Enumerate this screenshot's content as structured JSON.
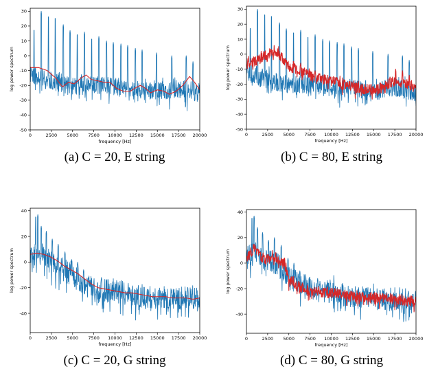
{
  "chart_data": [
    {
      "type": "line",
      "caption": "(a) C = 20, E string",
      "xlabel": "frequency [Hz]",
      "ylabel": "log power spectrum",
      "xlim": [
        0,
        20000
      ],
      "ylim": [
        -50,
        32
      ],
      "xticks": [
        0,
        2500,
        5000,
        7500,
        10000,
        12500,
        15000,
        17500,
        20000
      ],
      "yticks": [
        -50,
        -40,
        -30,
        -20,
        -10,
        0,
        10,
        20,
        30
      ],
      "series": [
        {
          "role": "spectrum",
          "color": "#1f77b4",
          "seed": 11,
          "base": [
            [
              0,
              -12
            ],
            [
              2500,
              -17
            ],
            [
              5000,
              -20
            ],
            [
              7500,
              -20
            ],
            [
              10000,
              -21
            ],
            [
              12500,
              -23
            ],
            [
              15000,
              -24
            ],
            [
              17500,
              -22
            ],
            [
              20000,
              -25
            ]
          ],
          "noise": 9,
          "amp": 3,
          "peaks": [
            [
              450,
              18
            ],
            [
              1300,
              30
            ],
            [
              2150,
              27
            ],
            [
              2950,
              26
            ],
            [
              3900,
              21
            ],
            [
              4700,
              17
            ],
            [
              5550,
              15
            ],
            [
              6400,
              16
            ],
            [
              7250,
              12
            ],
            [
              8100,
              13
            ],
            [
              9000,
              10
            ],
            [
              9800,
              9
            ],
            [
              10700,
              8
            ],
            [
              11500,
              7
            ],
            [
              12400,
              5
            ],
            [
              13200,
              4
            ],
            [
              14900,
              2
            ],
            [
              16700,
              0
            ],
            [
              18400,
              0
            ],
            [
              19200,
              -4
            ]
          ]
        },
        {
          "role": "envelope",
          "color": "#d62728",
          "points": [
            [
              0,
              -8
            ],
            [
              1000,
              -8
            ],
            [
              2000,
              -10
            ],
            [
              3000,
              -15
            ],
            [
              3800,
              -21
            ],
            [
              4500,
              -18
            ],
            [
              5200,
              -19
            ],
            [
              6000,
              -15
            ],
            [
              6600,
              -13
            ],
            [
              7200,
              -16
            ],
            [
              8000,
              -17
            ],
            [
              8800,
              -18
            ],
            [
              9400,
              -18
            ],
            [
              10200,
              -22
            ],
            [
              11000,
              -24
            ],
            [
              11800,
              -24
            ],
            [
              12300,
              -22
            ],
            [
              13000,
              -20
            ],
            [
              13600,
              -22
            ],
            [
              14200,
              -25
            ],
            [
              15000,
              -23
            ],
            [
              15800,
              -24
            ],
            [
              16400,
              -26
            ],
            [
              17200,
              -24
            ],
            [
              18000,
              -20
            ],
            [
              18800,
              -14
            ],
            [
              19400,
              -18
            ],
            [
              20000,
              -23
            ]
          ]
        }
      ]
    },
    {
      "type": "line",
      "caption": "(b) C = 80, E string",
      "xlabel": "frequency [Hz]",
      "ylabel": "log power spectrum",
      "xlim": [
        0,
        20000
      ],
      "ylim": [
        -50,
        32
      ],
      "xticks": [
        0,
        2500,
        5000,
        7500,
        10000,
        12500,
        15000,
        17500,
        20000
      ],
      "yticks": [
        -50,
        -40,
        -30,
        -20,
        -10,
        0,
        10,
        20,
        30
      ],
      "series": [
        {
          "role": "spectrum",
          "color": "#1f77b4",
          "seed": 23,
          "base": [
            [
              0,
              -12
            ],
            [
              2500,
              -17
            ],
            [
              5000,
              -20
            ],
            [
              7500,
              -20
            ],
            [
              10000,
              -22
            ],
            [
              12500,
              -23
            ],
            [
              15000,
              -24
            ],
            [
              17500,
              -22
            ],
            [
              20000,
              -25
            ]
          ],
          "noise": 9,
          "amp": 3,
          "peaks": [
            [
              450,
              18
            ],
            [
              1300,
              30
            ],
            [
              2150,
              27
            ],
            [
              2950,
              26
            ],
            [
              3900,
              21
            ],
            [
              4700,
              17
            ],
            [
              5550,
              15
            ],
            [
              6400,
              16
            ],
            [
              7250,
              12
            ],
            [
              8100,
              13
            ],
            [
              9000,
              10
            ],
            [
              9800,
              9
            ],
            [
              10700,
              8
            ],
            [
              11500,
              7
            ],
            [
              12400,
              5
            ],
            [
              13200,
              4
            ],
            [
              14900,
              2
            ],
            [
              16700,
              0
            ],
            [
              18400,
              -1
            ],
            [
              19200,
              -4
            ]
          ]
        },
        {
          "role": "envelope",
          "color": "#d62728",
          "seed": 41,
          "base": [
            [
              0,
              -6
            ],
            [
              1000,
              -5
            ],
            [
              2500,
              0
            ],
            [
              3500,
              2
            ],
            [
              5000,
              -8
            ],
            [
              7500,
              -14
            ],
            [
              10000,
              -18
            ],
            [
              12500,
              -22
            ],
            [
              15000,
              -24
            ],
            [
              17500,
              -18
            ],
            [
              20000,
              -21
            ]
          ],
          "noise": 5,
          "amp": 2,
          "peaks": [
            [
              1300,
              -1
            ],
            [
              2150,
              2
            ],
            [
              2950,
              4
            ],
            [
              3900,
              -2
            ],
            [
              4700,
              -4
            ],
            [
              5550,
              -4
            ],
            [
              6400,
              -6
            ],
            [
              7250,
              -10
            ],
            [
              8100,
              -11
            ],
            [
              9000,
              -14
            ],
            [
              9800,
              -15
            ],
            [
              10700,
              -16
            ],
            [
              11500,
              -17
            ],
            [
              13200,
              -18
            ],
            [
              17600,
              -10
            ],
            [
              18400,
              -11
            ],
            [
              19200,
              -14
            ]
          ]
        }
      ]
    },
    {
      "type": "line",
      "caption": "(c) C = 20, G string",
      "xlabel": "frequency [Hz]",
      "ylabel": "log power spectrum",
      "xlim": [
        0,
        20000
      ],
      "ylim": [
        -55,
        42
      ],
      "xticks": [
        0,
        2500,
        5000,
        7500,
        10000,
        12500,
        15000,
        17500,
        20000
      ],
      "yticks": [
        -40,
        -20,
        0,
        20,
        40
      ],
      "series": [
        {
          "role": "spectrum",
          "color": "#1f77b4",
          "seed": 57,
          "base": [
            [
              0,
              4
            ],
            [
              1000,
              8
            ],
            [
              2000,
              2
            ],
            [
              3000,
              -2
            ],
            [
              4000,
              -6
            ],
            [
              5000,
              -10
            ],
            [
              6000,
              -15
            ],
            [
              7000,
              -18
            ],
            [
              8000,
              -22
            ],
            [
              10000,
              -22
            ],
            [
              12500,
              -27
            ],
            [
              15000,
              -28
            ],
            [
              17500,
              -28
            ],
            [
              20000,
              -29
            ]
          ],
          "noise": 13,
          "amp": 4,
          "peaks": [
            [
              650,
              36
            ],
            [
              900,
              37
            ],
            [
              1300,
              28
            ],
            [
              1900,
              24
            ],
            [
              2600,
              18
            ],
            [
              3300,
              14
            ],
            [
              4100,
              8
            ],
            [
              4900,
              2
            ],
            [
              5600,
              0
            ],
            [
              6300,
              -6
            ],
            [
              8400,
              -12
            ],
            [
              10500,
              -18
            ]
          ]
        },
        {
          "role": "envelope",
          "color": "#d62728",
          "points": [
            [
              0,
              6
            ],
            [
              800,
              7
            ],
            [
              1600,
              6
            ],
            [
              2400,
              4
            ],
            [
              3200,
              1
            ],
            [
              4000,
              -3
            ],
            [
              4800,
              -6
            ],
            [
              5600,
              -9
            ],
            [
              6400,
              -13
            ],
            [
              7200,
              -17
            ],
            [
              8000,
              -20
            ],
            [
              8800,
              -21
            ],
            [
              9600,
              -22
            ],
            [
              10400,
              -23
            ],
            [
              11200,
              -24
            ],
            [
              12000,
              -24
            ],
            [
              12800,
              -25
            ],
            [
              13600,
              -26
            ],
            [
              14400,
              -27
            ],
            [
              15200,
              -27
            ],
            [
              16000,
              -27
            ],
            [
              16800,
              -28
            ],
            [
              17600,
              -28
            ],
            [
              18400,
              -28
            ],
            [
              19200,
              -29
            ],
            [
              20000,
              -28
            ]
          ]
        }
      ]
    },
    {
      "type": "line",
      "caption": "(d) C = 80, G string",
      "xlabel": "frequency [Hz]",
      "ylabel": "log power spectrum",
      "xlim": [
        0,
        20000
      ],
      "ylim": [
        -55,
        42
      ],
      "xticks": [
        0,
        2500,
        5000,
        7500,
        10000,
        12500,
        15000,
        17500,
        20000
      ],
      "yticks": [
        -40,
        -20,
        0,
        20,
        40
      ],
      "series": [
        {
          "role": "spectrum",
          "color": "#1f77b4",
          "seed": 71,
          "base": [
            [
              0,
              4
            ],
            [
              1000,
              8
            ],
            [
              2000,
              2
            ],
            [
              3000,
              2
            ],
            [
              4000,
              -2
            ],
            [
              5000,
              -12
            ],
            [
              6000,
              -15
            ],
            [
              7000,
              -18
            ],
            [
              8000,
              -22
            ],
            [
              10000,
              -22
            ],
            [
              12500,
              -27
            ],
            [
              15000,
              -28
            ],
            [
              17500,
              -28
            ],
            [
              20000,
              -29
            ]
          ],
          "noise": 13,
          "amp": 4,
          "peaks": [
            [
              650,
              36
            ],
            [
              900,
              37
            ],
            [
              1300,
              28
            ],
            [
              1900,
              24
            ],
            [
              2600,
              18
            ],
            [
              3300,
              20
            ],
            [
              4100,
              14
            ],
            [
              4900,
              4
            ],
            [
              5600,
              0
            ],
            [
              6300,
              -6
            ],
            [
              8400,
              -12
            ],
            [
              10500,
              -18
            ]
          ]
        },
        {
          "role": "envelope",
          "color": "#d62728",
          "seed": 83,
          "base": [
            [
              0,
              3
            ],
            [
              500,
              8
            ],
            [
              900,
              13
            ],
            [
              1500,
              7
            ],
            [
              2200,
              3
            ],
            [
              3000,
              6
            ],
            [
              3800,
              3
            ],
            [
              4500,
              0
            ],
            [
              5000,
              -12
            ],
            [
              6000,
              -18
            ],
            [
              7500,
              -22
            ],
            [
              10000,
              -23
            ],
            [
              12500,
              -26
            ],
            [
              15000,
              -27
            ],
            [
              17500,
              -28
            ],
            [
              20000,
              -30
            ]
          ],
          "noise": 6,
          "amp": 2,
          "peaks": []
        }
      ]
    }
  ]
}
